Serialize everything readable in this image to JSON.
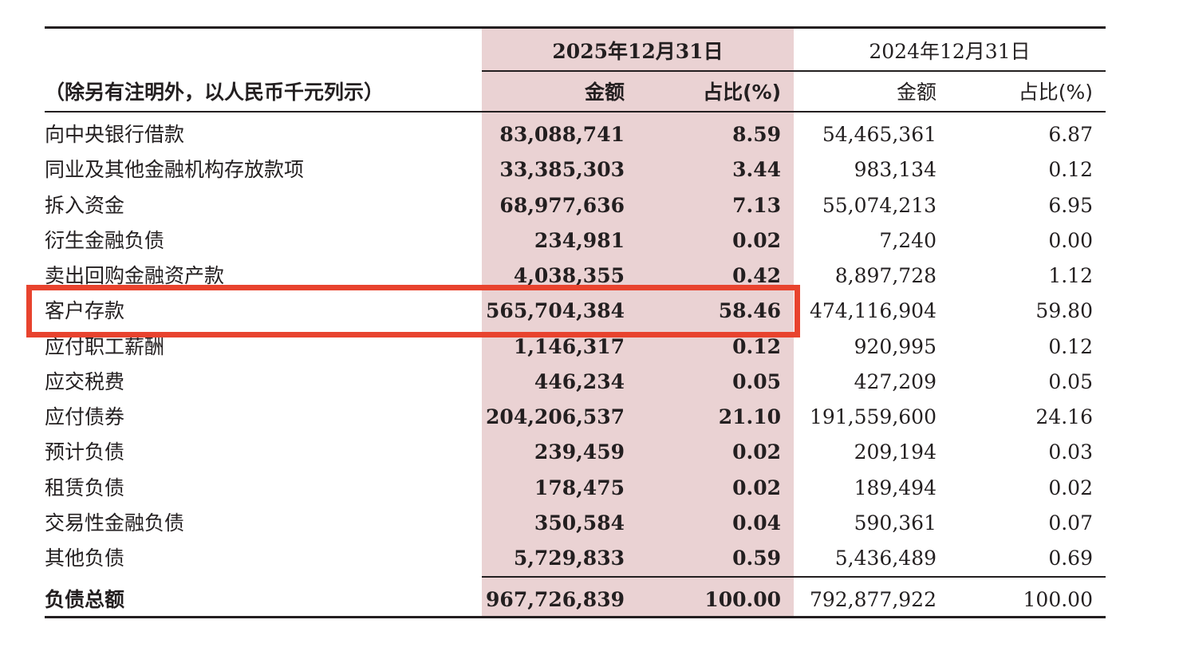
{
  "caption": "（除另有注明外，以人民币千元列示）",
  "periods": [
    {
      "date": "2025年12月31日",
      "amount_header": "金额",
      "ratio_header": "占比(%)"
    },
    {
      "date": "2024年12月31日",
      "amount_header": "金额",
      "ratio_header": "占比(%)"
    }
  ],
  "rows": [
    {
      "label": "向中央银行借款",
      "amt_2025": "83,088,741",
      "pct_2025": "8.59",
      "amt_2024": "54,465,361",
      "pct_2024": "6.87"
    },
    {
      "label": "同业及其他金融机构存放款项",
      "amt_2025": "33,385,303",
      "pct_2025": "3.44",
      "amt_2024": "983,134",
      "pct_2024": "0.12"
    },
    {
      "label": "拆入资金",
      "amt_2025": "68,977,636",
      "pct_2025": "7.13",
      "amt_2024": "55,074,213",
      "pct_2024": "6.95"
    },
    {
      "label": "衍生金融负债",
      "amt_2025": "234,981",
      "pct_2025": "0.02",
      "amt_2024": "7,240",
      "pct_2024": "0.00"
    },
    {
      "label": "卖出回购金融资产款",
      "amt_2025": "4,038,355",
      "pct_2025": "0.42",
      "amt_2024": "8,897,728",
      "pct_2024": "1.12"
    },
    {
      "label": "客户存款",
      "amt_2025": "565,704,384",
      "pct_2025": "58.46",
      "amt_2024": "474,116,904",
      "pct_2024": "59.80"
    },
    {
      "label": "应付职工薪酬",
      "amt_2025": "1,146,317",
      "pct_2025": "0.12",
      "amt_2024": "920,995",
      "pct_2024": "0.12"
    },
    {
      "label": "应交税费",
      "amt_2025": "446,234",
      "pct_2025": "0.05",
      "amt_2024": "427,209",
      "pct_2024": "0.05"
    },
    {
      "label": "应付债券",
      "amt_2025": "204,206,537",
      "pct_2025": "21.10",
      "amt_2024": "191,559,600",
      "pct_2024": "24.16"
    },
    {
      "label": "预计负债",
      "amt_2025": "239,459",
      "pct_2025": "0.02",
      "amt_2024": "209,194",
      "pct_2024": "0.03"
    },
    {
      "label": "租赁负债",
      "amt_2025": "178,475",
      "pct_2025": "0.02",
      "amt_2024": "189,494",
      "pct_2024": "0.02"
    },
    {
      "label": "交易性金融负债",
      "amt_2025": "350,584",
      "pct_2025": "0.04",
      "amt_2024": "590,361",
      "pct_2024": "0.07"
    },
    {
      "label": "其他负债",
      "amt_2025": "5,729,833",
      "pct_2025": "0.59",
      "amt_2024": "5,436,489",
      "pct_2024": "0.69"
    }
  ],
  "total": {
    "label": "负债总额",
    "amt_2025": "967,726,839",
    "pct_2025": "100.00",
    "amt_2024": "792,877,922",
    "pct_2024": "100.00"
  },
  "colors": {
    "shade_2025": "#ead2d3",
    "highlight_border": "#e8432e",
    "text": "#231f20"
  },
  "highlighted_row": "客户存款"
}
